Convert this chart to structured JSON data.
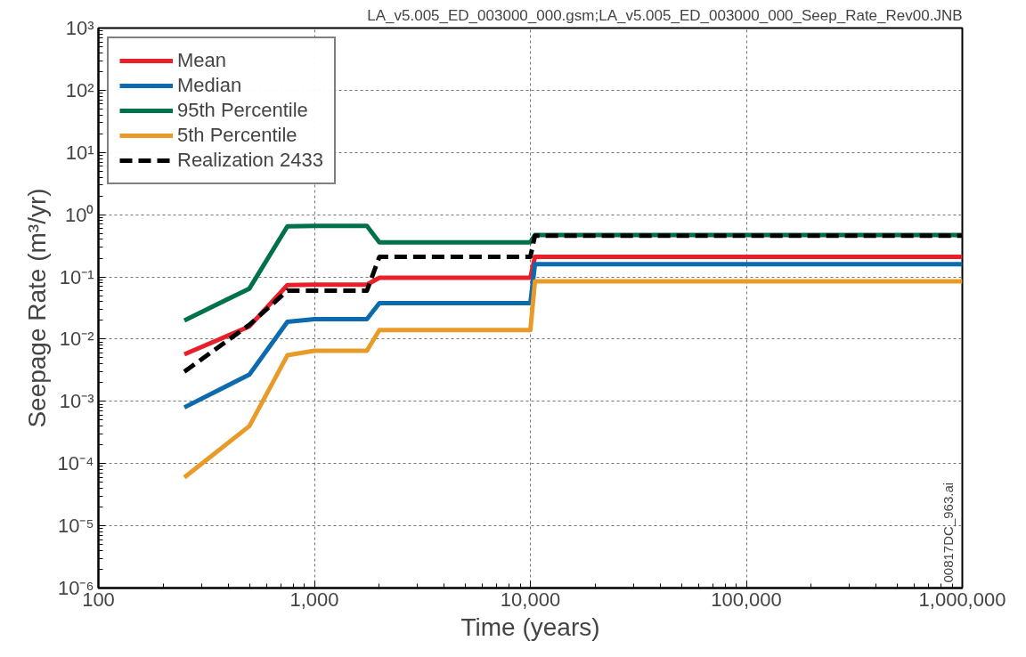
{
  "chart_data": {
    "type": "line",
    "xlabel": "Time (years)",
    "ylabel": "Seepage Rate (m³/yr)",
    "annotations": [
      "LA_v5.005_ED_003000_000.gsm;LA_v5.005_ED_003000_000_Seep_Rate_Rev00.JNB",
      "00817DC_963.ai"
    ],
    "x": [
      250,
      500,
      750,
      1000,
      1750,
      2000,
      10000,
      10500,
      1000000
    ],
    "series": [
      {
        "name": "Mean",
        "color": "#e8202a",
        "values": [
          0.0057,
          0.016,
          0.074,
          0.075,
          0.075,
          0.097,
          0.097,
          0.21,
          0.21
        ]
      },
      {
        "name": "Median",
        "color": "#0c6aad",
        "values": [
          0.0008,
          0.0027,
          0.019,
          0.021,
          0.021,
          0.038,
          0.038,
          0.16,
          0.16
        ]
      },
      {
        "name": "95th Percentile",
        "color": "#00714a",
        "values": [
          0.02,
          0.065,
          0.65,
          0.66,
          0.66,
          0.36,
          0.36,
          0.47,
          0.47
        ]
      },
      {
        "name": "5th Percentile",
        "color": "#e99b2a",
        "values": [
          6e-05,
          0.0004,
          0.0055,
          0.0065,
          0.0065,
          0.014,
          0.014,
          0.085,
          0.085
        ]
      },
      {
        "name": "Realization 2433",
        "color": "#000000",
        "line_style": "dashed",
        "values": [
          0.003,
          0.017,
          0.06,
          0.06,
          0.06,
          0.21,
          0.21,
          0.46,
          0.46
        ]
      }
    ],
    "log": "xy",
    "grid": true,
    "legend": "top left",
    "line_style": "solid",
    "marker": "none",
    "xlim": [
      100,
      1000000
    ],
    "ylim": [
      1e-06,
      1000
    ],
    "xticks": [
      100,
      {
        "value": 1000,
        "label": "1,000"
      },
      {
        "value": 10000,
        "label": "10,000"
      },
      {
        "value": 100000,
        "label": "100,000"
      },
      {
        "value": 1000000,
        "label": "1,000,000"
      }
    ],
    "yticks": [
      {
        "value": 1e-06,
        "label": "10⁻⁶"
      },
      {
        "value": 1e-05,
        "label": "10⁻⁵"
      },
      {
        "value": 0.0001,
        "label": "10⁻⁴"
      },
      {
        "value": 0.001,
        "label": "10⁻³"
      },
      {
        "value": 0.01,
        "label": "10⁻²"
      },
      {
        "value": 0.1,
        "label": "10⁻¹"
      },
      {
        "value": 1,
        "label": "10⁰"
      },
      {
        "value": 10,
        "label": "10¹"
      },
      {
        "value": 100,
        "label": "10²"
      },
      {
        "value": 1000,
        "label": "10³"
      }
    ]
  }
}
